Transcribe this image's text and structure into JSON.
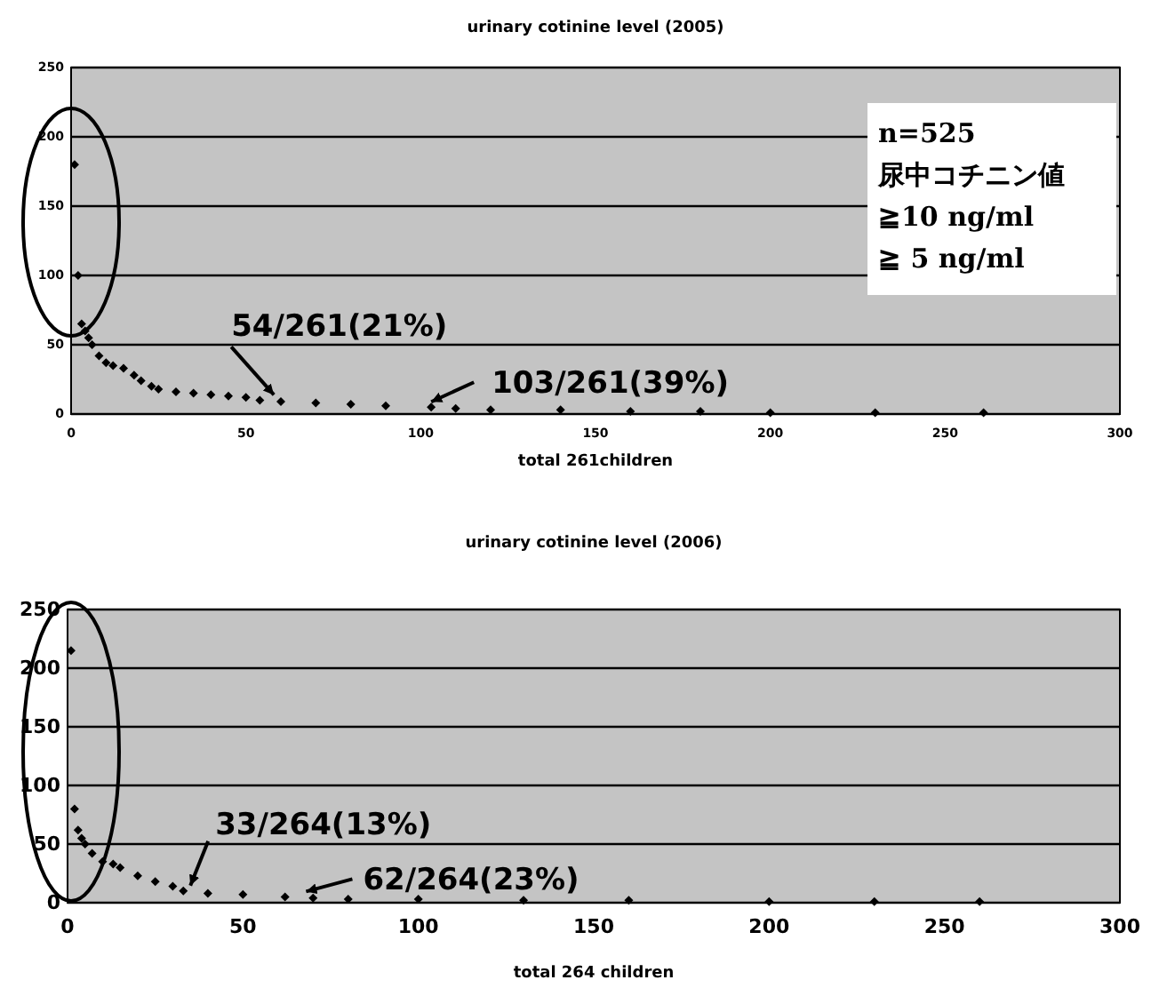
{
  "chart_data": [
    {
      "type": "scatter",
      "title": "urinary cotinine level (2005)",
      "xlabel": "total 261children",
      "xlim": [
        0,
        300
      ],
      "xticks": [
        0,
        50,
        100,
        150,
        200,
        250,
        300
      ],
      "ylim": [
        0,
        250
      ],
      "yticks": [
        0,
        50,
        100,
        150,
        200,
        250
      ],
      "grid": "y",
      "marker": "diamond",
      "series": [
        {
          "color": "#000000",
          "x": [
            1,
            2,
            3,
            4,
            5,
            6,
            8,
            10,
            12,
            15,
            18,
            20,
            23,
            25,
            30,
            35,
            40,
            45,
            50,
            54,
            60,
            70,
            80,
            90,
            103,
            110,
            120,
            140,
            160,
            180,
            200,
            230,
            261
          ],
          "values": [
            180,
            100,
            65,
            60,
            55,
            50,
            42,
            37,
            35,
            33,
            28,
            24,
            20,
            18,
            16,
            15,
            14,
            13,
            12,
            10,
            9,
            8,
            7,
            6,
            5,
            4,
            3,
            3,
            2,
            2,
            1,
            1,
            1
          ]
        }
      ],
      "annotations": [
        {
          "text": "54/261(21%)",
          "x": 57,
          "y": 10
        },
        {
          "text": "103/261(39%)",
          "x": 102,
          "y": 5
        },
        "n=525",
        "尿中コチニン値",
        "≧10 ng/ml",
        "≧ 5 ng/ml"
      ]
    },
    {
      "type": "scatter",
      "title": "urinary cotinine level (2006)",
      "xlabel": "total 264 children",
      "xlim": [
        0,
        300
      ],
      "xticks": [
        0,
        50,
        100,
        150,
        200,
        250,
        300
      ],
      "ylim": [
        0,
        250
      ],
      "yticks": [
        0,
        50,
        100,
        150,
        200,
        250
      ],
      "grid": "y",
      "marker": "diamond",
      "series": [
        {
          "color": "#000000",
          "x": [
            1,
            2,
            3,
            4,
            5,
            7,
            10,
            13,
            15,
            20,
            25,
            30,
            33,
            40,
            50,
            62,
            70,
            80,
            100,
            130,
            160,
            200,
            230,
            260
          ],
          "values": [
            215,
            80,
            62,
            55,
            50,
            42,
            35,
            33,
            30,
            23,
            18,
            14,
            10,
            8,
            7,
            5,
            4,
            3,
            3,
            2,
            2,
            1,
            1,
            1
          ]
        }
      ],
      "annotations": [
        {
          "text": "33/264(13%)",
          "x": 34,
          "y": 10
        },
        {
          "text": "62/264(23%)",
          "x": 67,
          "y": 5
        }
      ]
    }
  ]
}
